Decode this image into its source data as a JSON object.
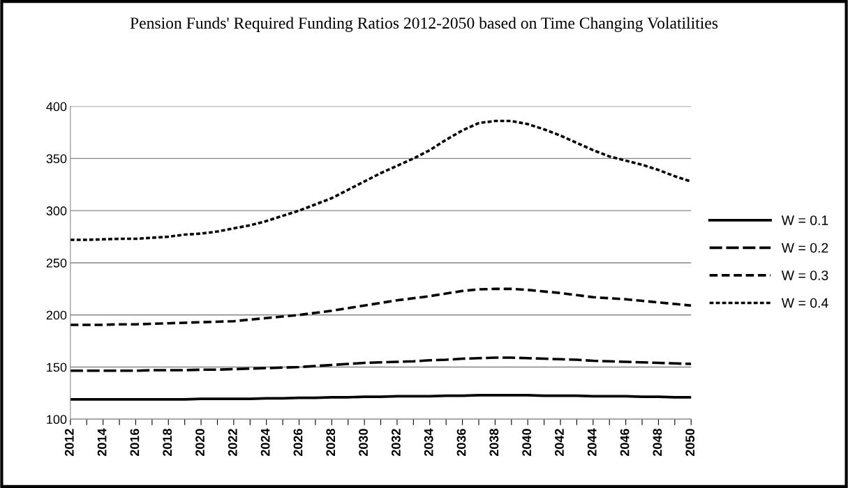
{
  "chart_data": {
    "type": "line",
    "title": "Pension Funds' Required Funding Ratios 2012-2050 based on Time Changing Volatilities",
    "categories": [
      "2012",
      null,
      "2014",
      null,
      "2016",
      null,
      "2018",
      null,
      "2020",
      null,
      "2022",
      null,
      "2024",
      null,
      "2026",
      null,
      "2028",
      null,
      "2030",
      null,
      "2032",
      null,
      "2034",
      null,
      "2036",
      null,
      "2038",
      null,
      "2040",
      null,
      "2042",
      null,
      "2044",
      null,
      "2046",
      null,
      "2048",
      null,
      "2050"
    ],
    "series": [
      {
        "name": "W = 0.1",
        "color": "#000000",
        "line_style": "solid",
        "values": [
          119,
          119,
          119,
          119,
          119,
          119,
          119,
          119,
          119.5,
          119.5,
          119.5,
          119.5,
          120,
          120,
          120.5,
          120.5,
          121,
          121,
          121.5,
          121.5,
          122,
          122,
          122,
          122.5,
          122.5,
          123,
          123,
          123,
          123,
          122.5,
          122.5,
          122.5,
          122,
          122,
          122,
          121.5,
          121.5,
          121,
          121
        ]
      },
      {
        "name": "W = 0.2",
        "color": "#000000",
        "line_style": "dashed",
        "values": [
          146.5,
          146.5,
          146.5,
          146.5,
          146.5,
          147,
          147,
          147,
          147.5,
          147.5,
          148,
          148.5,
          149,
          149.5,
          150,
          151,
          152,
          153,
          154,
          154.5,
          155,
          155.5,
          156.5,
          157,
          158,
          158.5,
          159,
          159,
          158.5,
          158,
          157.5,
          157,
          156,
          155.5,
          155,
          154.5,
          154,
          153.5,
          153
        ]
      },
      {
        "name": "W = 0.3",
        "color": "#000000",
        "line_style": "dashed",
        "values": [
          190.5,
          190.5,
          190.5,
          191,
          191,
          191.5,
          192,
          192.5,
          193,
          193.5,
          194,
          195.5,
          197,
          198.5,
          200,
          202,
          204,
          206.5,
          209,
          211.5,
          214,
          216,
          218,
          220.5,
          223,
          224.5,
          225,
          225,
          224,
          222.5,
          221,
          219,
          217,
          216,
          215,
          213.5,
          212,
          210.5,
          209
        ]
      },
      {
        "name": "W = 0.4",
        "color": "#000000",
        "line_style": "dotted",
        "values": [
          272,
          272,
          272.5,
          273,
          273,
          274,
          275,
          277,
          278,
          280,
          283,
          286,
          290,
          295,
          300,
          306,
          312,
          320,
          328,
          336,
          343,
          350,
          358,
          368,
          377,
          384,
          386,
          386,
          383,
          378,
          372,
          365,
          358,
          352,
          348,
          344,
          339,
          333,
          328
        ]
      }
    ],
    "ylim": [
      100,
      400
    ],
    "yticks": [
      100,
      150,
      200,
      250,
      300,
      350,
      400
    ],
    "grid": "y",
    "legend": "right",
    "marker": "none"
  }
}
